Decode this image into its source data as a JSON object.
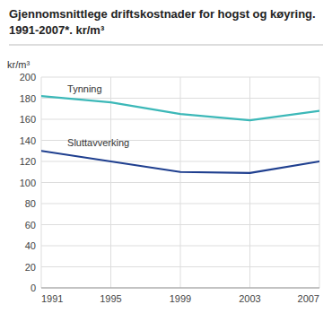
{
  "chart_data": {
    "type": "line",
    "title": "Gjennomsnittlege driftskostnader for hogst og køyring.",
    "subtitle": "1991-2007*. kr/m³",
    "y_label": "kr/m³",
    "x": [
      1991,
      1995,
      1999,
      2003,
      2007
    ],
    "series": [
      {
        "color": "#3cb8b8",
        "values": [
          182,
          176,
          165,
          159,
          168
        ]
      },
      {
        "color": "#1f3f8f",
        "values": [
          130,
          120,
          110,
          109,
          120
        ]
      }
    ],
    "annotations": [
      {
        "text": "Tynning",
        "x": 1992.5,
        "y": 184
      },
      {
        "text": "Sluttavverking",
        "x": 1992.5,
        "y": 133
      }
    ],
    "xlim": [
      1991,
      2007
    ],
    "xticks": [
      1991,
      1995,
      1999,
      2003,
      2007
    ],
    "ylim": [
      0,
      200
    ],
    "yticks": [
      0,
      20,
      40,
      60,
      80,
      100,
      120,
      140,
      160,
      180,
      200
    ],
    "grid": true
  }
}
